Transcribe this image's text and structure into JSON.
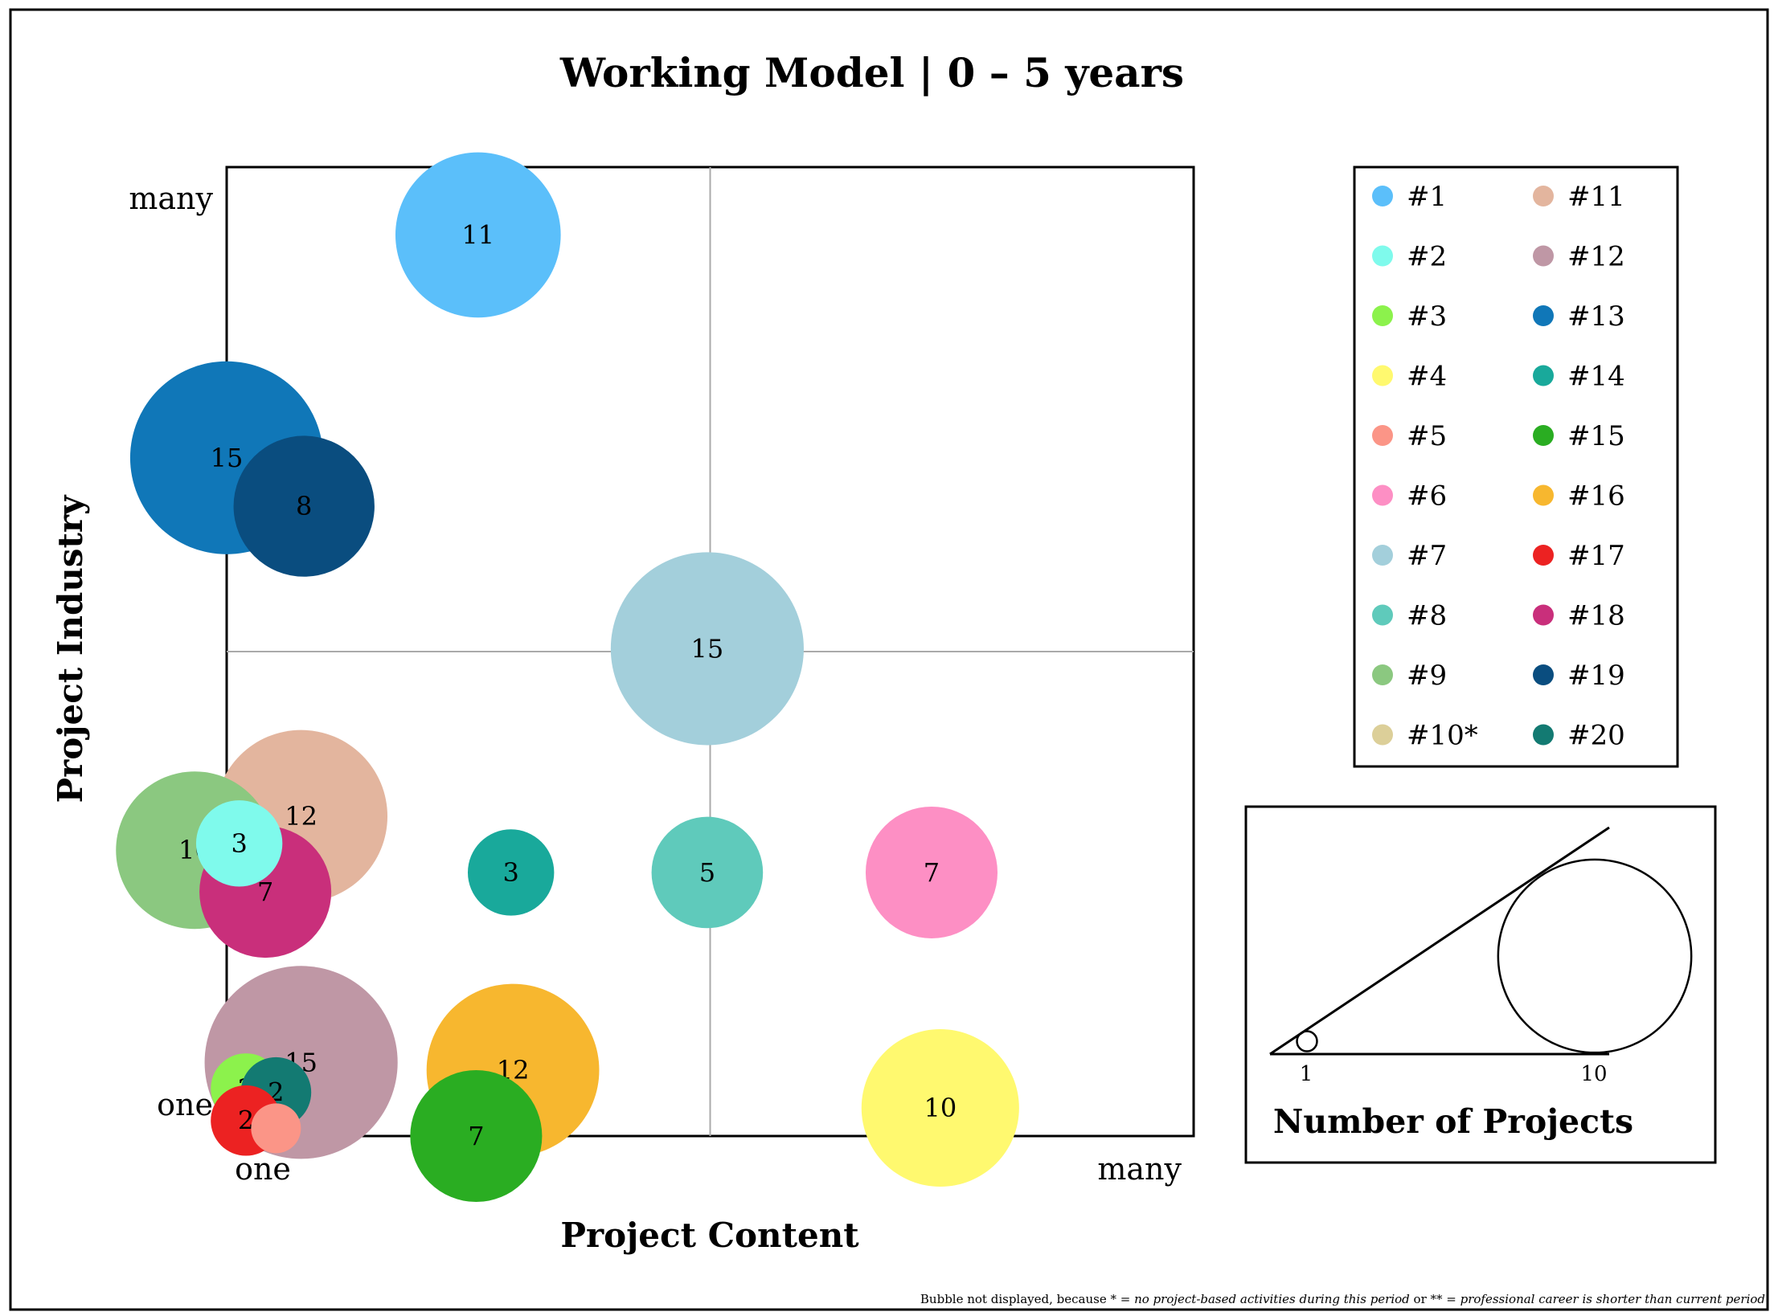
{
  "chart_data": {
    "type": "scatter",
    "title": "Working Model | 0 – 5 years",
    "xlabel": "Project Content",
    "ylabel": "Project Industry",
    "x_tick_labels": [
      "one",
      "many"
    ],
    "y_tick_labels": [
      "one",
      "many"
    ],
    "xlim": [
      0,
      10
    ],
    "ylim": [
      0,
      10
    ],
    "grid": "quadrant-lines-at-midpoint",
    "bubbles": [
      {
        "project": "#1",
        "x": 2.6,
        "y": 9.3,
        "size": 11,
        "label": "11"
      },
      {
        "project": "#13",
        "x": 0.0,
        "y": 7.0,
        "size": 15,
        "label": "15"
      },
      {
        "project": "#19",
        "x": 0.8,
        "y": 6.5,
        "size": 8,
        "label": "8"
      },
      {
        "project": "#7",
        "x": 4.97,
        "y": 5.03,
        "size": 15,
        "label": "15"
      },
      {
        "project": "#11",
        "x": 0.77,
        "y": 3.3,
        "size": 12,
        "label": "12"
      },
      {
        "project": "#9",
        "x": -0.33,
        "y": 2.95,
        "size": 10,
        "label": "10"
      },
      {
        "project": "#18",
        "x": 0.4,
        "y": 2.52,
        "size": 7,
        "label": "7"
      },
      {
        "project": "#2",
        "x": 0.13,
        "y": 3.02,
        "size": 3,
        "label": "3"
      },
      {
        "project": "#14",
        "x": 2.94,
        "y": 2.72,
        "size": 3,
        "label": "3"
      },
      {
        "project": "#8",
        "x": 4.97,
        "y": 2.72,
        "size": 5,
        "label": "5"
      },
      {
        "project": "#6",
        "x": 7.29,
        "y": 2.72,
        "size": 7,
        "label": "7"
      },
      {
        "project": "#12",
        "x": 0.77,
        "y": 0.76,
        "size": 15,
        "label": "15"
      },
      {
        "project": "#16",
        "x": 2.96,
        "y": 0.68,
        "size": 12,
        "label": "12"
      },
      {
        "project": "#15",
        "x": 2.58,
        "y": 0.0,
        "size": 7,
        "label": "7"
      },
      {
        "project": "#4",
        "x": 7.38,
        "y": 0.29,
        "size": 10,
        "label": "10"
      },
      {
        "project": "#3",
        "x": 0.2,
        "y": 0.49,
        "size": 2,
        "label": "2"
      },
      {
        "project": "#20",
        "x": 0.51,
        "y": 0.45,
        "size": 2,
        "label": "2"
      },
      {
        "project": "#17",
        "x": 0.2,
        "y": 0.16,
        "size": 2,
        "label": "2"
      },
      {
        "project": "#5",
        "x": 0.51,
        "y": 0.08,
        "size": 1,
        "label": ""
      }
    ],
    "legend": {
      "placement": "top-right",
      "entries": [
        {
          "name": "#1",
          "color": "#5bbffa"
        },
        {
          "name": "#2",
          "color": "#7ffaec"
        },
        {
          "name": "#3",
          "color": "#8cf24c"
        },
        {
          "name": "#4",
          "color": "#fff96f"
        },
        {
          "name": "#5",
          "color": "#fb9587"
        },
        {
          "name": "#6",
          "color": "#fd8fc4"
        },
        {
          "name": "#7",
          "color": "#a3cfdb"
        },
        {
          "name": "#8",
          "color": "#5fcabb"
        },
        {
          "name": "#9",
          "color": "#8bc880"
        },
        {
          "name": "#10*",
          "color": "#dccf99"
        },
        {
          "name": "#11",
          "color": "#e3b59e"
        },
        {
          "name": "#12",
          "color": "#bf97a5"
        },
        {
          "name": "#13",
          "color": "#1077b8"
        },
        {
          "name": "#14",
          "color": "#19a99b"
        },
        {
          "name": "#15",
          "color": "#2aad22"
        },
        {
          "name": "#16",
          "color": "#f7b72f"
        },
        {
          "name": "#17",
          "color": "#ec2222"
        },
        {
          "name": "#18",
          "color": "#c92f7b"
        },
        {
          "name": "#19",
          "color": "#0a4d7f"
        },
        {
          "name": "#20",
          "color": "#137a72"
        }
      ]
    },
    "size_key": {
      "title": "Number of Projects",
      "min_label": "1",
      "max_label": "10",
      "min_value": 1,
      "max_value": 10
    },
    "footnote": {
      "prefix": "Bubble not displayed, because * = ",
      "reason1": "no project-based activities during this period",
      "middle": " or ** = ",
      "reason2": "professional career is shorter than current period"
    }
  }
}
